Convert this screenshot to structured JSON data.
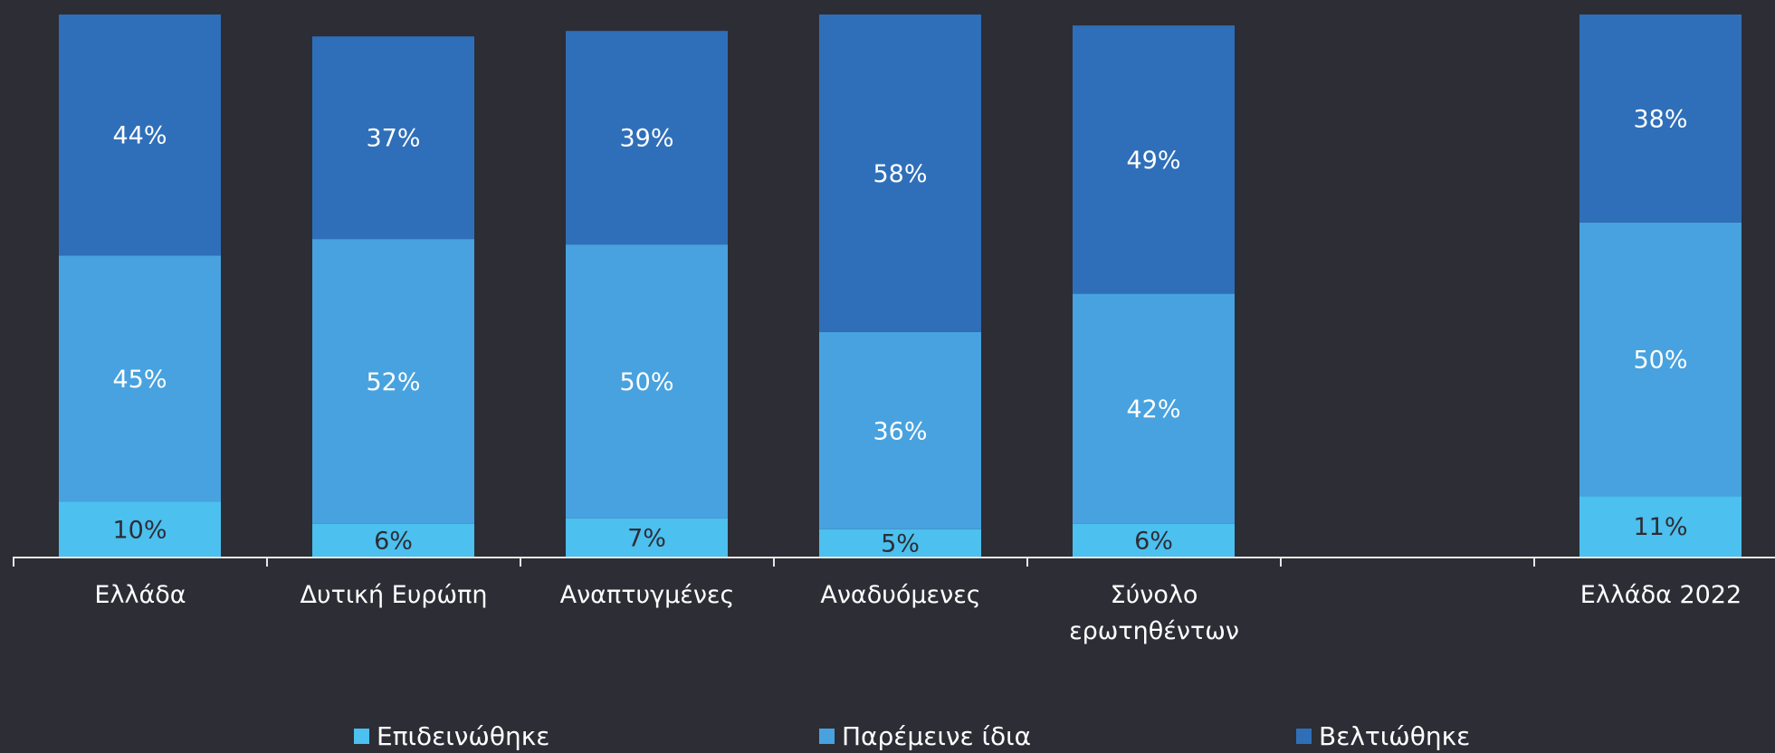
{
  "chart_data": {
    "type": "stacked_bar",
    "categories": [
      "Ελλάδα",
      "Δυτική Ευρώπη",
      "Αναπτυγμένες",
      "Αναδυόμενες",
      "Σύνολο ερωτηθέντων",
      null,
      "Ελλάδα 2022"
    ],
    "series": [
      {
        "name": "Επιδεινώθηκε",
        "color": "#4cc0ee",
        "label_color": "#2d2d36",
        "values": [
          10,
          6,
          7,
          5,
          6,
          null,
          11
        ],
        "value_labels": [
          "10%",
          "6%",
          "7%",
          "5%",
          "6%",
          null,
          "11%"
        ]
      },
      {
        "name": "Παρέμεινε ίδια",
        "color": "#48a2df",
        "label_color": "#ffffff",
        "values": [
          45,
          52,
          50,
          36,
          42,
          null,
          50
        ],
        "value_labels": [
          "45%",
          "52%",
          "50%",
          "36%",
          "42%",
          null,
          "50%"
        ]
      },
      {
        "name": "Βελτιώθηκε",
        "color": "#2f6fb9",
        "label_color": "#ffffff",
        "values": [
          44,
          37,
          39,
          58,
          49,
          null,
          38
        ],
        "value_labels": [
          "44%",
          "37%",
          "39%",
          "58%",
          "49%",
          null,
          "38%"
        ]
      }
    ],
    "ylim": [
      0,
      100
    ],
    "legend": "bottom"
  }
}
